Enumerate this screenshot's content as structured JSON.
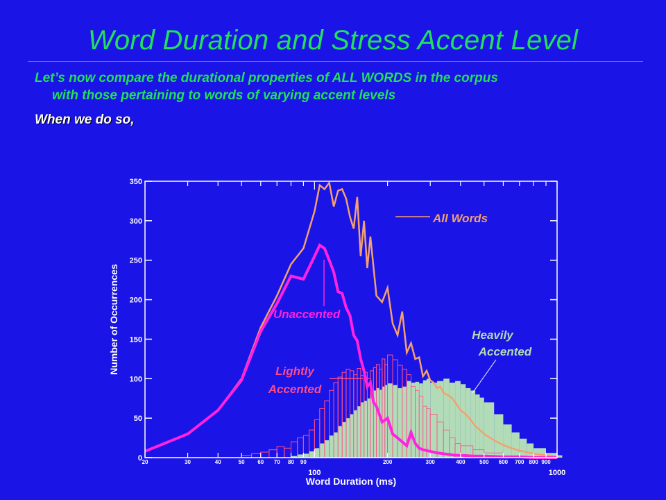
{
  "slide": {
    "title": "Word Duration and Stress Accent Level",
    "bullet1_line1": "Let’s now compare the durational properties of ALL WORDS in the corpus",
    "bullet1_line2": "with those pertaining to words of varying accent levels",
    "bullet2": "When we do so,"
  },
  "colors": {
    "background": "#1a14e6",
    "title": "#22e05a",
    "all_words": "#f4a070",
    "unaccented": "#ff22e0",
    "lightly_accented": "#ff4a8a",
    "heavily_accented": "#b2dcb8"
  },
  "chart_data": {
    "type": "line",
    "xlabel": "Word Duration (ms)",
    "ylabel": "Number of Occurrences",
    "x_scale": "log",
    "xlim": [
      20,
      1000
    ],
    "ylim": [
      0,
      350
    ],
    "y_ticks": [
      0,
      50,
      100,
      150,
      200,
      250,
      300,
      350
    ],
    "x_ticks_small": [
      20,
      30,
      40,
      50,
      60,
      70,
      80,
      90,
      200,
      300,
      400,
      500,
      600,
      700,
      800,
      900
    ],
    "x_ticks_large": [
      100,
      1000
    ],
    "annotations": {
      "all_words": "All Words",
      "unaccented": "Unaccented",
      "lightly_1": "Lightly",
      "lightly_2": "Accented",
      "heavily_1": "Heavily",
      "heavily_2": "Accented"
    },
    "series": [
      {
        "name": "All Words",
        "style": "line",
        "x": [
          20,
          30,
          40,
          50,
          60,
          70,
          80,
          90,
          100,
          105,
          110,
          115,
          120,
          125,
          130,
          135,
          140,
          145,
          150,
          155,
          160,
          165,
          170,
          175,
          180,
          190,
          200,
          210,
          220,
          230,
          240,
          250,
          260,
          270,
          280,
          290,
          300,
          310,
          320,
          330,
          340,
          350,
          360,
          370,
          380,
          400,
          420,
          440,
          460,
          480,
          500,
          550,
          600,
          650,
          700,
          750,
          800,
          900,
          1000
        ],
        "values": [
          8,
          30,
          60,
          100,
          165,
          205,
          245,
          265,
          312,
          345,
          340,
          348,
          318,
          338,
          340,
          328,
          305,
          290,
          330,
          255,
          300,
          240,
          280,
          242,
          205,
          197,
          215,
          170,
          155,
          185,
          133,
          145,
          125,
          127,
          103,
          110,
          98,
          95,
          88,
          90,
          82,
          80,
          78,
          75,
          70,
          60,
          55,
          48,
          40,
          35,
          30,
          22,
          16,
          12,
          9,
          7,
          5,
          3,
          2
        ]
      },
      {
        "name": "Unaccented",
        "style": "line",
        "x": [
          20,
          30,
          40,
          50,
          60,
          70,
          80,
          90,
          100,
          105,
          110,
          115,
          120,
          125,
          130,
          135,
          140,
          145,
          150,
          155,
          160,
          165,
          170,
          175,
          180,
          190,
          200,
          210,
          220,
          230,
          240,
          250,
          260,
          270,
          280,
          290,
          300,
          320,
          340,
          360,
          380,
          400,
          450,
          500,
          600,
          700,
          800,
          900,
          1000
        ],
        "values": [
          8,
          30,
          60,
          98,
          160,
          195,
          230,
          226,
          255,
          269,
          265,
          250,
          235,
          210,
          208,
          190,
          180,
          155,
          148,
          125,
          110,
          90,
          95,
          70,
          65,
          45,
          50,
          30,
          25,
          20,
          15,
          32,
          18,
          12,
          10,
          9,
          8,
          6,
          5,
          4,
          3,
          3,
          2,
          2,
          1,
          1,
          0,
          0,
          0
        ]
      },
      {
        "name": "Lightly Accented",
        "style": "bars",
        "x": [
          50,
          55,
          60,
          65,
          70,
          75,
          80,
          85,
          90,
          95,
          100,
          105,
          110,
          115,
          120,
          125,
          130,
          135,
          140,
          145,
          150,
          155,
          160,
          165,
          170,
          175,
          180,
          185,
          190,
          195,
          200,
          210,
          220,
          230,
          240,
          250,
          260,
          270,
          280,
          290,
          300,
          320,
          340,
          360,
          380,
          400,
          450,
          500,
          600
        ],
        "values": [
          3,
          5,
          7,
          10,
          14,
          12,
          20,
          25,
          28,
          35,
          48,
          62,
          72,
          85,
          95,
          102,
          108,
          112,
          110,
          105,
          113,
          104,
          108,
          100,
          110,
          114,
          118,
          112,
          125,
          118,
          130,
          124,
          117,
          112,
          105,
          90,
          85,
          78,
          65,
          62,
          55,
          45,
          35,
          25,
          18,
          15,
          10,
          6,
          2
        ]
      },
      {
        "name": "Heavily Accented",
        "style": "bars",
        "x": [
          80,
          85,
          90,
          95,
          100,
          105,
          110,
          115,
          120,
          125,
          130,
          135,
          140,
          145,
          150,
          155,
          160,
          165,
          170,
          175,
          180,
          185,
          190,
          195,
          200,
          210,
          220,
          230,
          240,
          250,
          260,
          270,
          280,
          290,
          300,
          320,
          340,
          360,
          380,
          400,
          420,
          440,
          460,
          480,
          500,
          550,
          600,
          650,
          700,
          750,
          800,
          900,
          1000
        ],
        "values": [
          2,
          4,
          5,
          8,
          12,
          18,
          22,
          28,
          32,
          40,
          45,
          50,
          55,
          60,
          65,
          70,
          72,
          75,
          80,
          85,
          88,
          86,
          90,
          92,
          94,
          92,
          88,
          90,
          97,
          95,
          96,
          94,
          98,
          100,
          95,
          97,
          100,
          95,
          97,
          93,
          88,
          85,
          80,
          76,
          70,
          55,
          42,
          32,
          24,
          18,
          12,
          6,
          3
        ]
      }
    ]
  }
}
